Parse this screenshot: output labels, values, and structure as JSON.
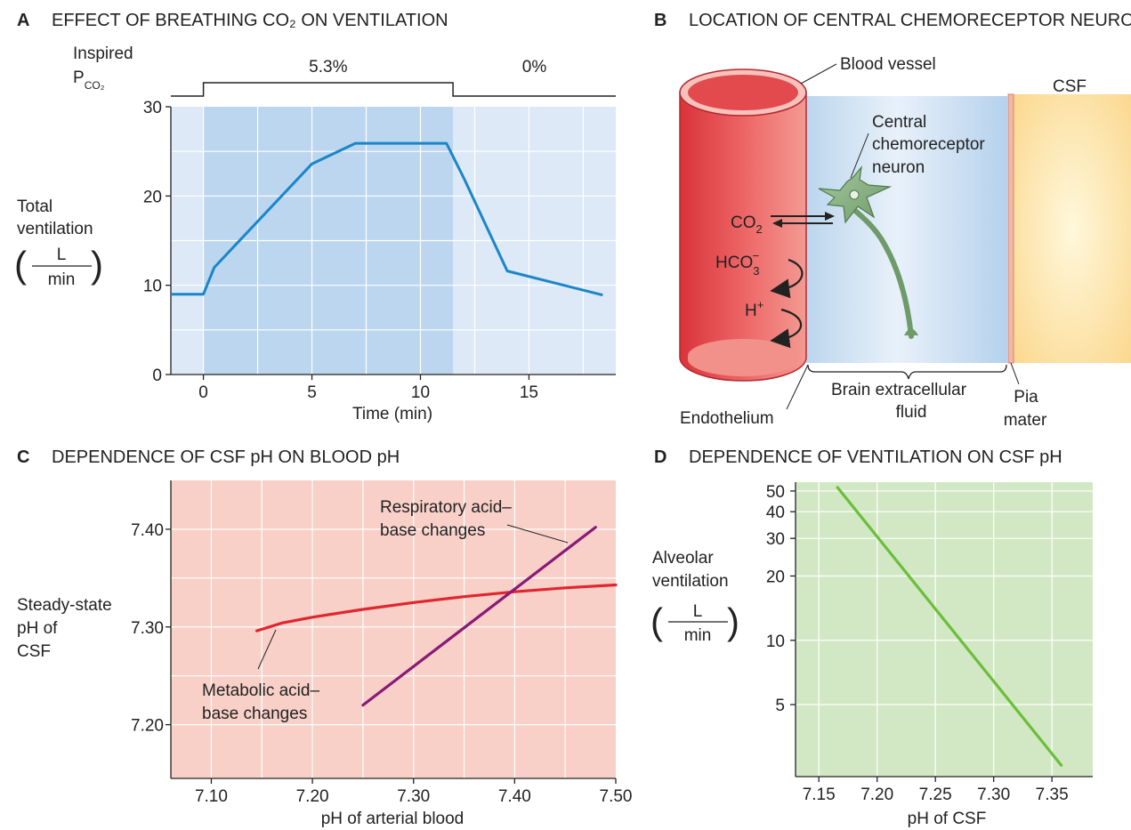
{
  "panels": {
    "A": {
      "letter": "A",
      "title": "EFFECT OF BREATHING CO₂ ON VENTILATION"
    },
    "B": {
      "letter": "B",
      "title": "LOCATION OF CENTRAL CHEMORECEPTOR NEURONS"
    },
    "C": {
      "letter": "C",
      "title": "DEPENDENCE OF CSF pH ON BLOOD pH"
    },
    "D": {
      "letter": "D",
      "title": "DEPENDENCE OF VENTILATION ON CSF pH"
    }
  },
  "panelA": {
    "inspired_label": "Inspired",
    "pco2_label": "P",
    "pco2_sub": "CO₂",
    "ylabel_line1": "Total",
    "ylabel_line2": "ventilation",
    "unit_num": "L",
    "unit_den": "min",
    "xlabel": "Time (min)",
    "co2_on": "5.3%",
    "co2_off": "0%"
  },
  "panelB": {
    "blood_vessel": "Blood vessel",
    "csf": "CSF",
    "neuron_line1": "Central",
    "neuron_line2": "chemoreceptor",
    "neuron_line3": "neuron",
    "co2": "CO",
    "co2_sub": "2",
    "hco3": "HCO",
    "hco3_sub": "3",
    "hco3_sup": "−",
    "h": "H",
    "h_sup": "+",
    "endothelium": "Endothelium",
    "brain_ecf_line1": "Brain extracellular",
    "brain_ecf_line2": "fluid",
    "pia_line1": "Pia",
    "pia_line2": "mater"
  },
  "panelC": {
    "ylabel_line1": "Steady-state",
    "ylabel_line2": "pH of",
    "ylabel_line3": "CSF",
    "resp_line1": "Respiratory acid–",
    "resp_line2": "base changes",
    "met_line1": "Metabolic acid–",
    "met_line2": "base changes"
  },
  "panelD": {
    "ylabel_line1": "Alveolar",
    "ylabel_line2": "ventilation",
    "unit_num": "L",
    "unit_den": "min"
  },
  "chart_data": [
    {
      "panel": "A",
      "type": "line",
      "title": "EFFECT OF BREATHING CO₂ ON VENTILATION",
      "xlabel": "Time (min)",
      "ylabel": "Total ventilation (L/min)",
      "xlim": [
        -1.5,
        19
      ],
      "ylim": [
        0,
        30
      ],
      "xticks": [
        0,
        5,
        10,
        15
      ],
      "yticks": [
        0,
        10,
        20,
        30
      ],
      "grid": true,
      "co2_period": {
        "start": 0,
        "end": 11.5,
        "label": "5.3%",
        "after_label": "0%"
      },
      "series": [
        {
          "x": [
            -1.5,
            0,
            0.5,
            5,
            7,
            11.2,
            12,
            14,
            18.4
          ],
          "y": [
            9,
            9,
            12,
            23.6,
            25.9,
            25.9,
            22,
            11.6,
            8.9
          ]
        }
      ]
    },
    {
      "panel": "C",
      "type": "line",
      "title": "DEPENDENCE OF CSF pH ON BLOOD pH",
      "xlabel": "pH of arterial blood",
      "ylabel": "Steady-state pH of CSF",
      "xlim": [
        7.06,
        7.5
      ],
      "ylim": [
        7.145,
        7.45
      ],
      "xticks": [
        7.1,
        7.2,
        7.3,
        7.4,
        7.5
      ],
      "yticks": [
        7.2,
        7.3,
        7.4
      ],
      "grid": true,
      "series": [
        {
          "name": "Respiratory acid–base changes",
          "x": [
            7.25,
            7.48
          ],
          "y": [
            7.22,
            7.402
          ]
        },
        {
          "name": "Metabolic acid–base changes",
          "x": [
            7.145,
            7.17,
            7.2,
            7.25,
            7.3,
            7.35,
            7.4,
            7.45,
            7.5
          ],
          "y": [
            7.296,
            7.304,
            7.31,
            7.318,
            7.325,
            7.331,
            7.336,
            7.34,
            7.343
          ]
        }
      ]
    },
    {
      "panel": "D",
      "type": "line",
      "title": "DEPENDENCE OF VENTILATION ON CSF pH",
      "xlabel": "pH of CSF",
      "ylabel": "Alveolar ventilation (L/min)",
      "xscale": "linear",
      "yscale": "log",
      "xlim": [
        7.13,
        7.385
      ],
      "ylim": [
        2.3,
        55
      ],
      "xticks": [
        7.15,
        7.2,
        7.25,
        7.3,
        7.35
      ],
      "yticks": [
        5,
        10,
        20,
        30,
        40,
        50
      ],
      "grid": true,
      "series": [
        {
          "x": [
            7.166,
            7.358
          ],
          "y": [
            52,
            2.6
          ]
        }
      ]
    }
  ]
}
